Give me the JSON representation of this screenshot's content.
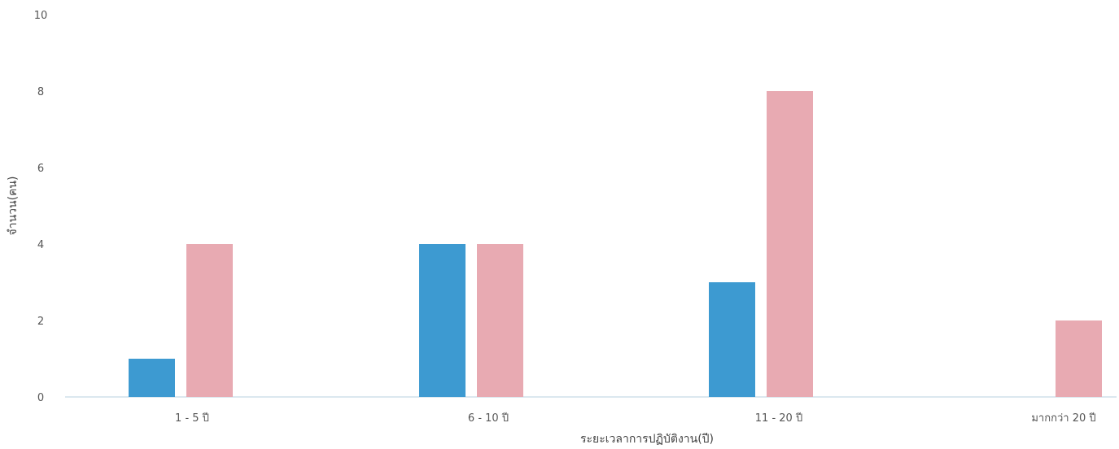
{
  "chart_data": {
    "type": "bar",
    "title": "",
    "xlabel": "ระยะเวลาการปฏิบัติงาน(ปี)",
    "ylabel": "จำนวน(คน)",
    "ylim": [
      0,
      10
    ],
    "yticks": [
      0,
      2,
      4,
      6,
      8,
      10
    ],
    "categories": [
      "1 - 5 ปี",
      "6 - 10 ปี",
      "11 - 20 ปี",
      "มากกว่า 20 ปี"
    ],
    "series": [
      {
        "color": "#3d9ad1",
        "values": [
          1,
          4,
          3,
          0
        ]
      },
      {
        "color": "#e8aab2",
        "values": [
          4,
          4,
          8,
          2
        ]
      }
    ],
    "grid": false,
    "legend": "none"
  }
}
